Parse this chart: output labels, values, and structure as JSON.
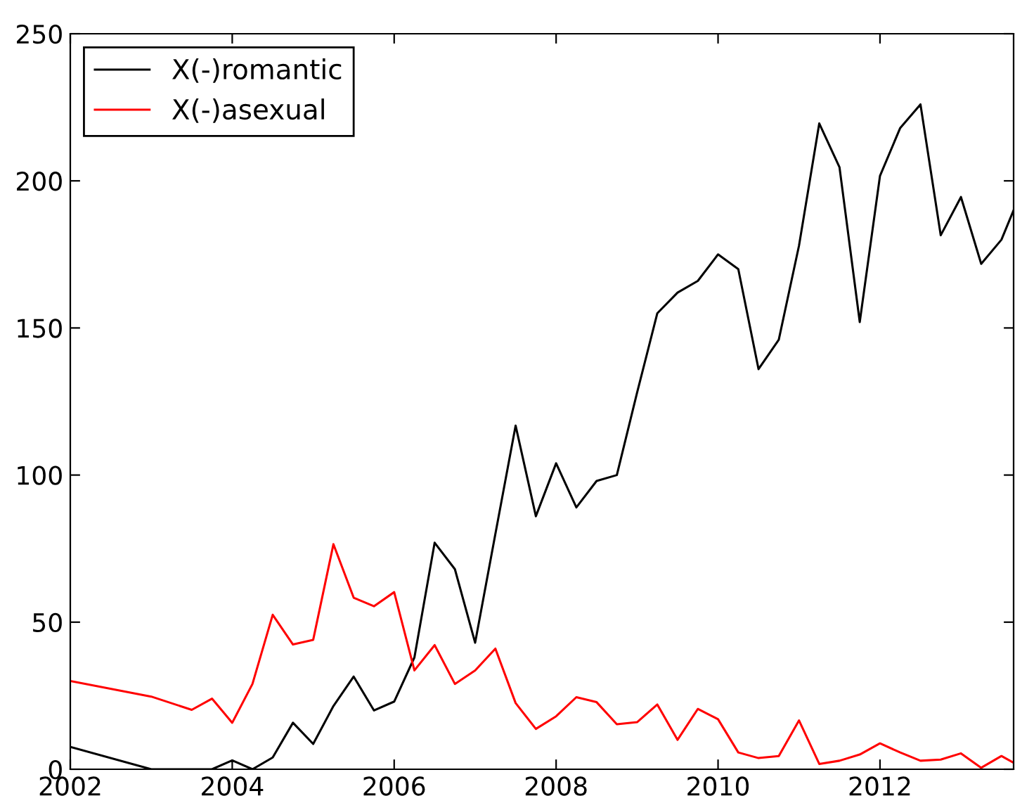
{
  "chart_data": {
    "type": "line",
    "xlim": [
      2002,
      2013.65
    ],
    "xticks": [
      2002,
      2004,
      2006,
      2008,
      2010,
      2012
    ],
    "ylim": [
      0,
      250
    ],
    "yticks": [
      0,
      50,
      100,
      150,
      200,
      250
    ],
    "grid": false,
    "legend": "top left",
    "marker": "none",
    "line_style": "solid",
    "series": [
      {
        "name": "X(-)romantic",
        "color": "#000000",
        "x": [
          2002.0,
          2003.0,
          2003.25,
          2003.5,
          2003.75,
          2004.0,
          2004.25,
          2004.5,
          2004.75,
          2005.0,
          2005.25,
          2005.5,
          2005.75,
          2006.0,
          2006.25,
          2006.5,
          2006.75,
          2007.0,
          2007.25,
          2007.5,
          2007.75,
          2008.0,
          2008.25,
          2008.5,
          2008.75,
          2009.0,
          2009.25,
          2009.5,
          2009.75,
          2010.0,
          2010.25,
          2010.5,
          2010.75,
          2011.0,
          2011.25,
          2011.5,
          2011.75,
          2012.0,
          2012.25,
          2012.5,
          2012.75,
          2013.0,
          2013.25,
          2013.5,
          2013.65
        ],
        "values": [
          7.6,
          0,
          0,
          0,
          0,
          3,
          0,
          4,
          15.8,
          8.6,
          21.5,
          31.5,
          20,
          23,
          38,
          77,
          68,
          43,
          80,
          116.8,
          86,
          104,
          89,
          98,
          100,
          128,
          155,
          162,
          166,
          175,
          170,
          136,
          146,
          178,
          219.5,
          204.6,
          152,
          201.7,
          218,
          226,
          181.5,
          194.5,
          171.8,
          180,
          190
        ]
      },
      {
        "name": "X(-)asexual",
        "color": "#ff0000",
        "x": [
          2002.0,
          2003.0,
          2003.5,
          2003.75,
          2004.0,
          2004.25,
          2004.5,
          2004.75,
          2005.0,
          2005.25,
          2005.5,
          2005.75,
          2006.0,
          2006.25,
          2006.5,
          2006.75,
          2007.0,
          2007.25,
          2007.5,
          2007.75,
          2008.0,
          2008.25,
          2008.5,
          2008.75,
          2009.0,
          2009.25,
          2009.5,
          2009.75,
          2010.0,
          2010.25,
          2010.5,
          2010.75,
          2011.0,
          2011.25,
          2011.5,
          2011.75,
          2012.0,
          2012.25,
          2012.5,
          2012.75,
          2013.0,
          2013.25,
          2013.5,
          2013.65
        ],
        "values": [
          30,
          24.7,
          20.2,
          24,
          15.8,
          29,
          52.5,
          42.4,
          44,
          76.5,
          58.3,
          55.4,
          60.2,
          33.6,
          42.2,
          29,
          33.6,
          41,
          22.5,
          13.7,
          18,
          24.5,
          22.8,
          15.3,
          16,
          22,
          10,
          20.5,
          17,
          5.7,
          3.8,
          4.5,
          16.6,
          1.8,
          2.9,
          5,
          8.8,
          5.7,
          2.9,
          3.3,
          5.4,
          0.5,
          4.5,
          2.2
        ]
      }
    ]
  }
}
